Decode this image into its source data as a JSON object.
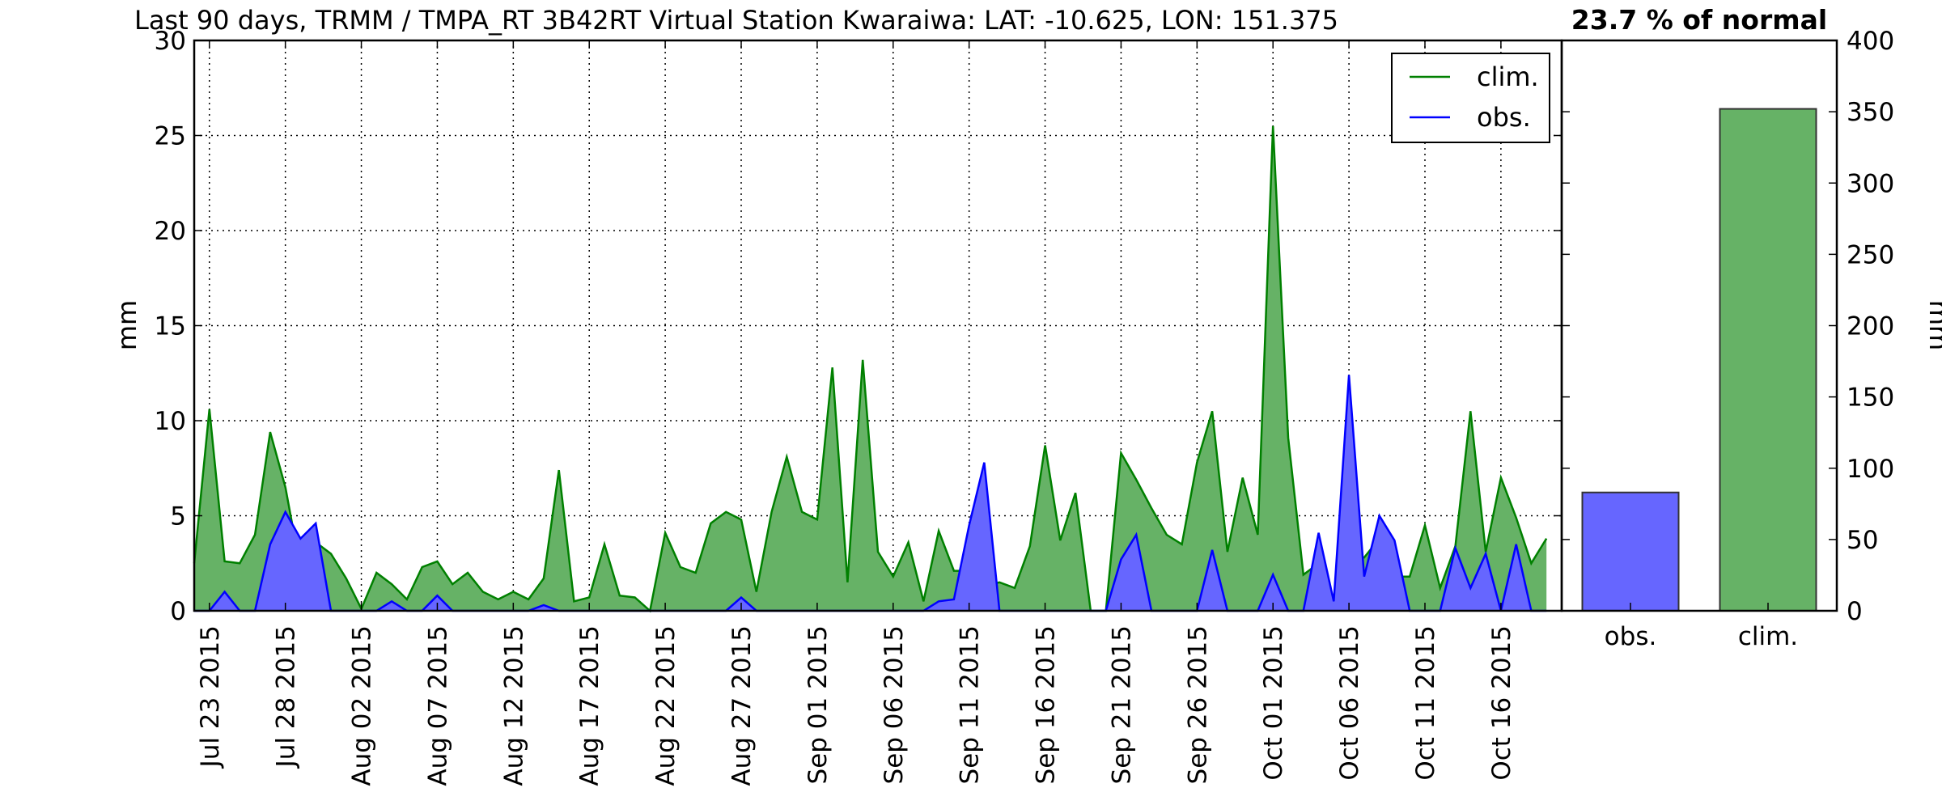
{
  "header": {
    "title": "Last 90 days, TRMM / TMPA_RT 3B42RT Virtual Station Kwaraiwa: LAT: -10.625, LON: 151.375",
    "percent_label": "23.7 % of normal"
  },
  "chart_data": [
    {
      "type": "area",
      "ylabel": "mm",
      "ylim": [
        0,
        30
      ],
      "yticks": [
        0,
        5,
        10,
        15,
        20,
        25,
        30
      ],
      "xlim": [
        "2015-07-22",
        "2015-10-20"
      ],
      "xtick_labels": [
        "Jul 23 2015",
        "Jul 28 2015",
        "Aug 02 2015",
        "Aug 07 2015",
        "Aug 12 2015",
        "Aug 17 2015",
        "Aug 22 2015",
        "Aug 27 2015",
        "Sep 01 2015",
        "Sep 06 2015",
        "Sep 11 2015",
        "Sep 16 2015",
        "Sep 21 2015",
        "Sep 26 2015",
        "Oct 01 2015",
        "Oct 06 2015",
        "Oct 11 2015",
        "Oct 16 2015"
      ],
      "grid": true,
      "legend_position": "top-right",
      "x_start": "2015-07-22",
      "series": [
        {
          "name": "clim.",
          "line_color": "#008000",
          "fill_color": "#66b266",
          "values": [
            2.5,
            10.6,
            2.6,
            2.5,
            4.0,
            9.4,
            6.5,
            2.2,
            3.6,
            3.0,
            1.7,
            0.1,
            2.0,
            1.4,
            0.6,
            2.3,
            2.6,
            1.4,
            2.0,
            1.0,
            0.6,
            1.0,
            0.6,
            1.7,
            7.4,
            0.5,
            0.7,
            3.5,
            0.8,
            0.7,
            0.0,
            4.1,
            2.3,
            2.0,
            4.6,
            5.2,
            4.8,
            1.0,
            5.2,
            8.1,
            5.2,
            4.8,
            12.8,
            1.5,
            13.2,
            3.1,
            1.8,
            3.6,
            0.5,
            4.2,
            2.1,
            2.1,
            1.3,
            1.5,
            1.2,
            3.4,
            8.7,
            3.7,
            6.2,
            0.0,
            0.0,
            8.3,
            6.9,
            5.4,
            4.0,
            3.5,
            7.8,
            10.5,
            3.1,
            7.0,
            4.0,
            25.5,
            9.1,
            1.9,
            2.5,
            0.5,
            2.9,
            2.8,
            3.8,
            1.8,
            1.8,
            4.5,
            1.2,
            3.4,
            10.5,
            3.1,
            7.0,
            4.9,
            2.5,
            3.8
          ]
        },
        {
          "name": "obs.",
          "line_color": "#0000ff",
          "fill_color": "#6666ff",
          "values": [
            0,
            0,
            1.0,
            0,
            0,
            3.5,
            5.2,
            3.8,
            4.6,
            0,
            0,
            0,
            0,
            0.5,
            0,
            0,
            0.8,
            0,
            0,
            0,
            0,
            0,
            0,
            0.3,
            0,
            0,
            0,
            0,
            0,
            0,
            0,
            0,
            0,
            0,
            0,
            0,
            0.7,
            0,
            0,
            0,
            0,
            0,
            0,
            0,
            0,
            0,
            0,
            0,
            0,
            0.5,
            0.6,
            4.5,
            7.8,
            0,
            0,
            0,
            0,
            0,
            0,
            0,
            0,
            2.7,
            4.0,
            0,
            0,
            0,
            0,
            3.2,
            0,
            0,
            0,
            1.9,
            0,
            0,
            4.1,
            0.5,
            12.4,
            1.8,
            5.0,
            3.7,
            0,
            0,
            0,
            3.3,
            1.2,
            3.0,
            0,
            3.5,
            0,
            0
          ]
        }
      ]
    },
    {
      "type": "bar",
      "ylabel": "mm",
      "ylim": [
        0,
        400
      ],
      "yticks": [
        0,
        50,
        100,
        150,
        200,
        250,
        300,
        350,
        400
      ],
      "categories": [
        "obs.",
        "clim."
      ],
      "values": [
        83,
        352
      ],
      "colors": [
        "#6666ff",
        "#66b266"
      ],
      "grid": false
    }
  ]
}
